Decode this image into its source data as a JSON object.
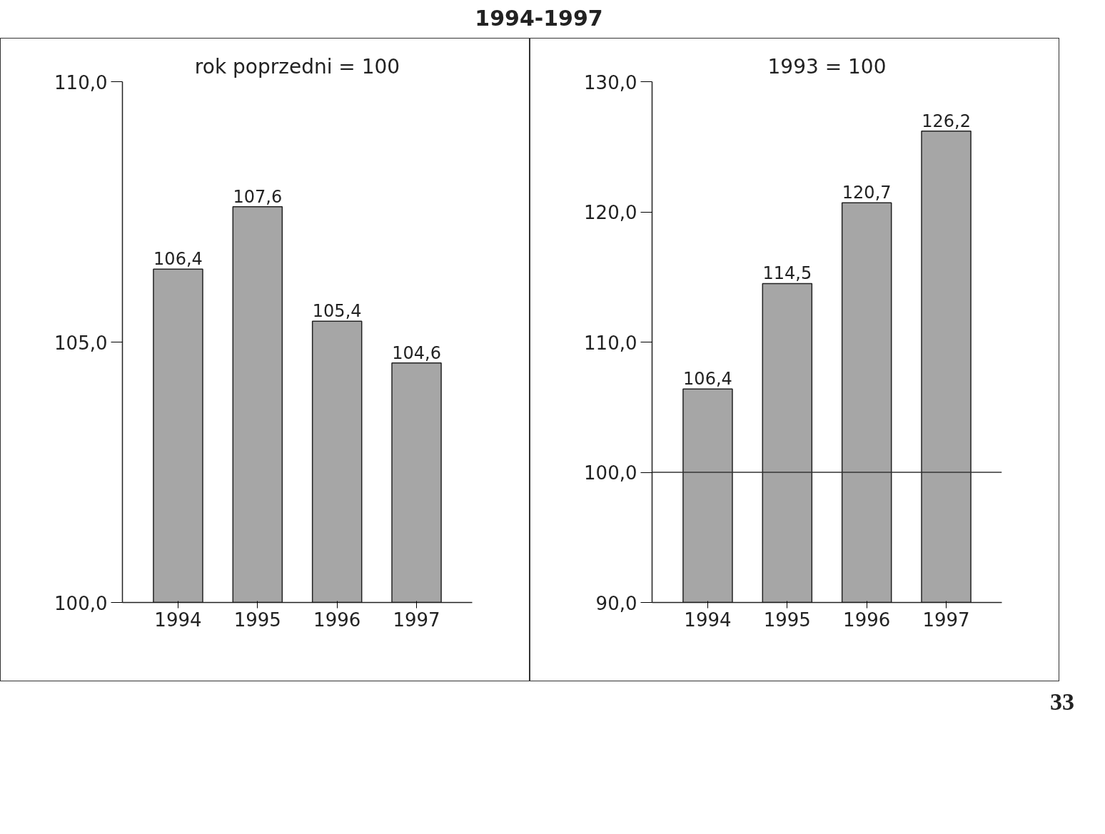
{
  "chart_data": [
    {
      "type": "bar",
      "title": "1994-1997",
      "subtitle": "rok poprzedni = 100",
      "categories": [
        "1994",
        "1995",
        "1996",
        "1997"
      ],
      "values": [
        106.4,
        107.6,
        105.4,
        104.6
      ],
      "color": "#a6a6a6",
      "value_labels": [
        "106,4",
        "107,6",
        "105,4",
        "104,6"
      ],
      "ylim": [
        100,
        110
      ],
      "yticks": [
        {
          "value": 100,
          "label": "100,0"
        },
        {
          "value": 105,
          "label": "105,0"
        },
        {
          "value": 110,
          "label": "110,0"
        }
      ],
      "grid": false
    },
    {
      "type": "bar",
      "subtitle": "1993 = 100",
      "categories": [
        "1994",
        "1995",
        "1996",
        "1997"
      ],
      "values": [
        106.4,
        114.5,
        120.7,
        126.2
      ],
      "color": "#a6a6a6",
      "value_labels": [
        "106,4",
        "114,5",
        "120,7",
        "126,2"
      ],
      "ylim": [
        90,
        130
      ],
      "yticks": [
        {
          "value": 90,
          "label": "90,0"
        },
        {
          "value": 100,
          "label": "100,0"
        },
        {
          "value": 110,
          "label": "110,0"
        },
        {
          "value": 120,
          "label": "120,0"
        },
        {
          "value": 130,
          "label": "130,0"
        }
      ],
      "ref_lines": [
        {
          "axis": "y",
          "value": 100,
          "color": "#333333"
        }
      ],
      "grid": false,
      "annotations": [
        "33"
      ]
    }
  ]
}
